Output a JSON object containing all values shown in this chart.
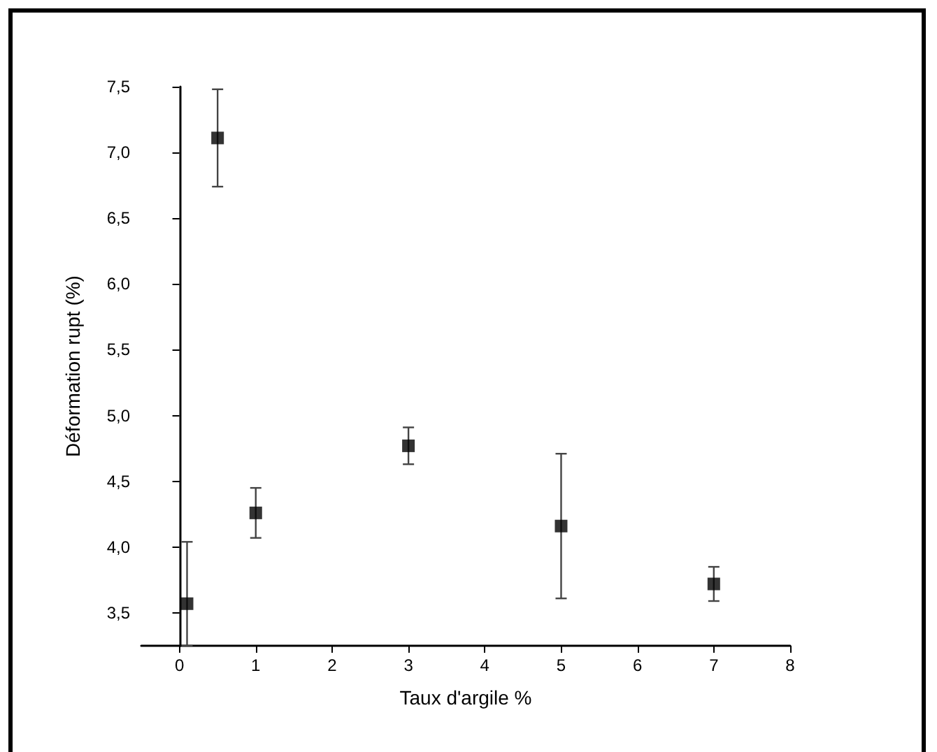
{
  "chart_data": {
    "type": "scatter",
    "xlabel": "Taux d'argile %",
    "ylabel": "Déformation rupt (%)",
    "x": [
      0.1,
      0.5,
      1,
      3,
      5,
      7
    ],
    "series": [
      {
        "color": "#000000",
        "values": [
          3.57,
          7.11,
          4.26,
          4.77,
          4.16,
          3.72
        ],
        "errors": [
          [
            3.25,
            4.04
          ],
          0.37,
          0.19,
          0.14,
          0.55,
          0.13
        ]
      }
    ],
    "marker": "square",
    "xlim": [
      -0.5,
      8
    ],
    "xticks": [
      0,
      1,
      2,
      3,
      4,
      5,
      6,
      7,
      8
    ],
    "ylim": [
      3.25,
      7.5
    ],
    "yticks": [
      {
        "value": 3.5,
        "label": "3,5"
      },
      {
        "value": 4,
        "label": "4,0"
      },
      {
        "value": 4.5,
        "label": "4,5"
      },
      {
        "value": 5,
        "label": "5,0"
      },
      {
        "value": 5.5,
        "label": "5,5"
      },
      {
        "value": 6,
        "label": "6,0"
      },
      {
        "value": 6.5,
        "label": "6,5"
      },
      {
        "value": 7,
        "label": "7,0"
      },
      {
        "value": 7.5,
        "label": "7,5"
      }
    ]
  }
}
